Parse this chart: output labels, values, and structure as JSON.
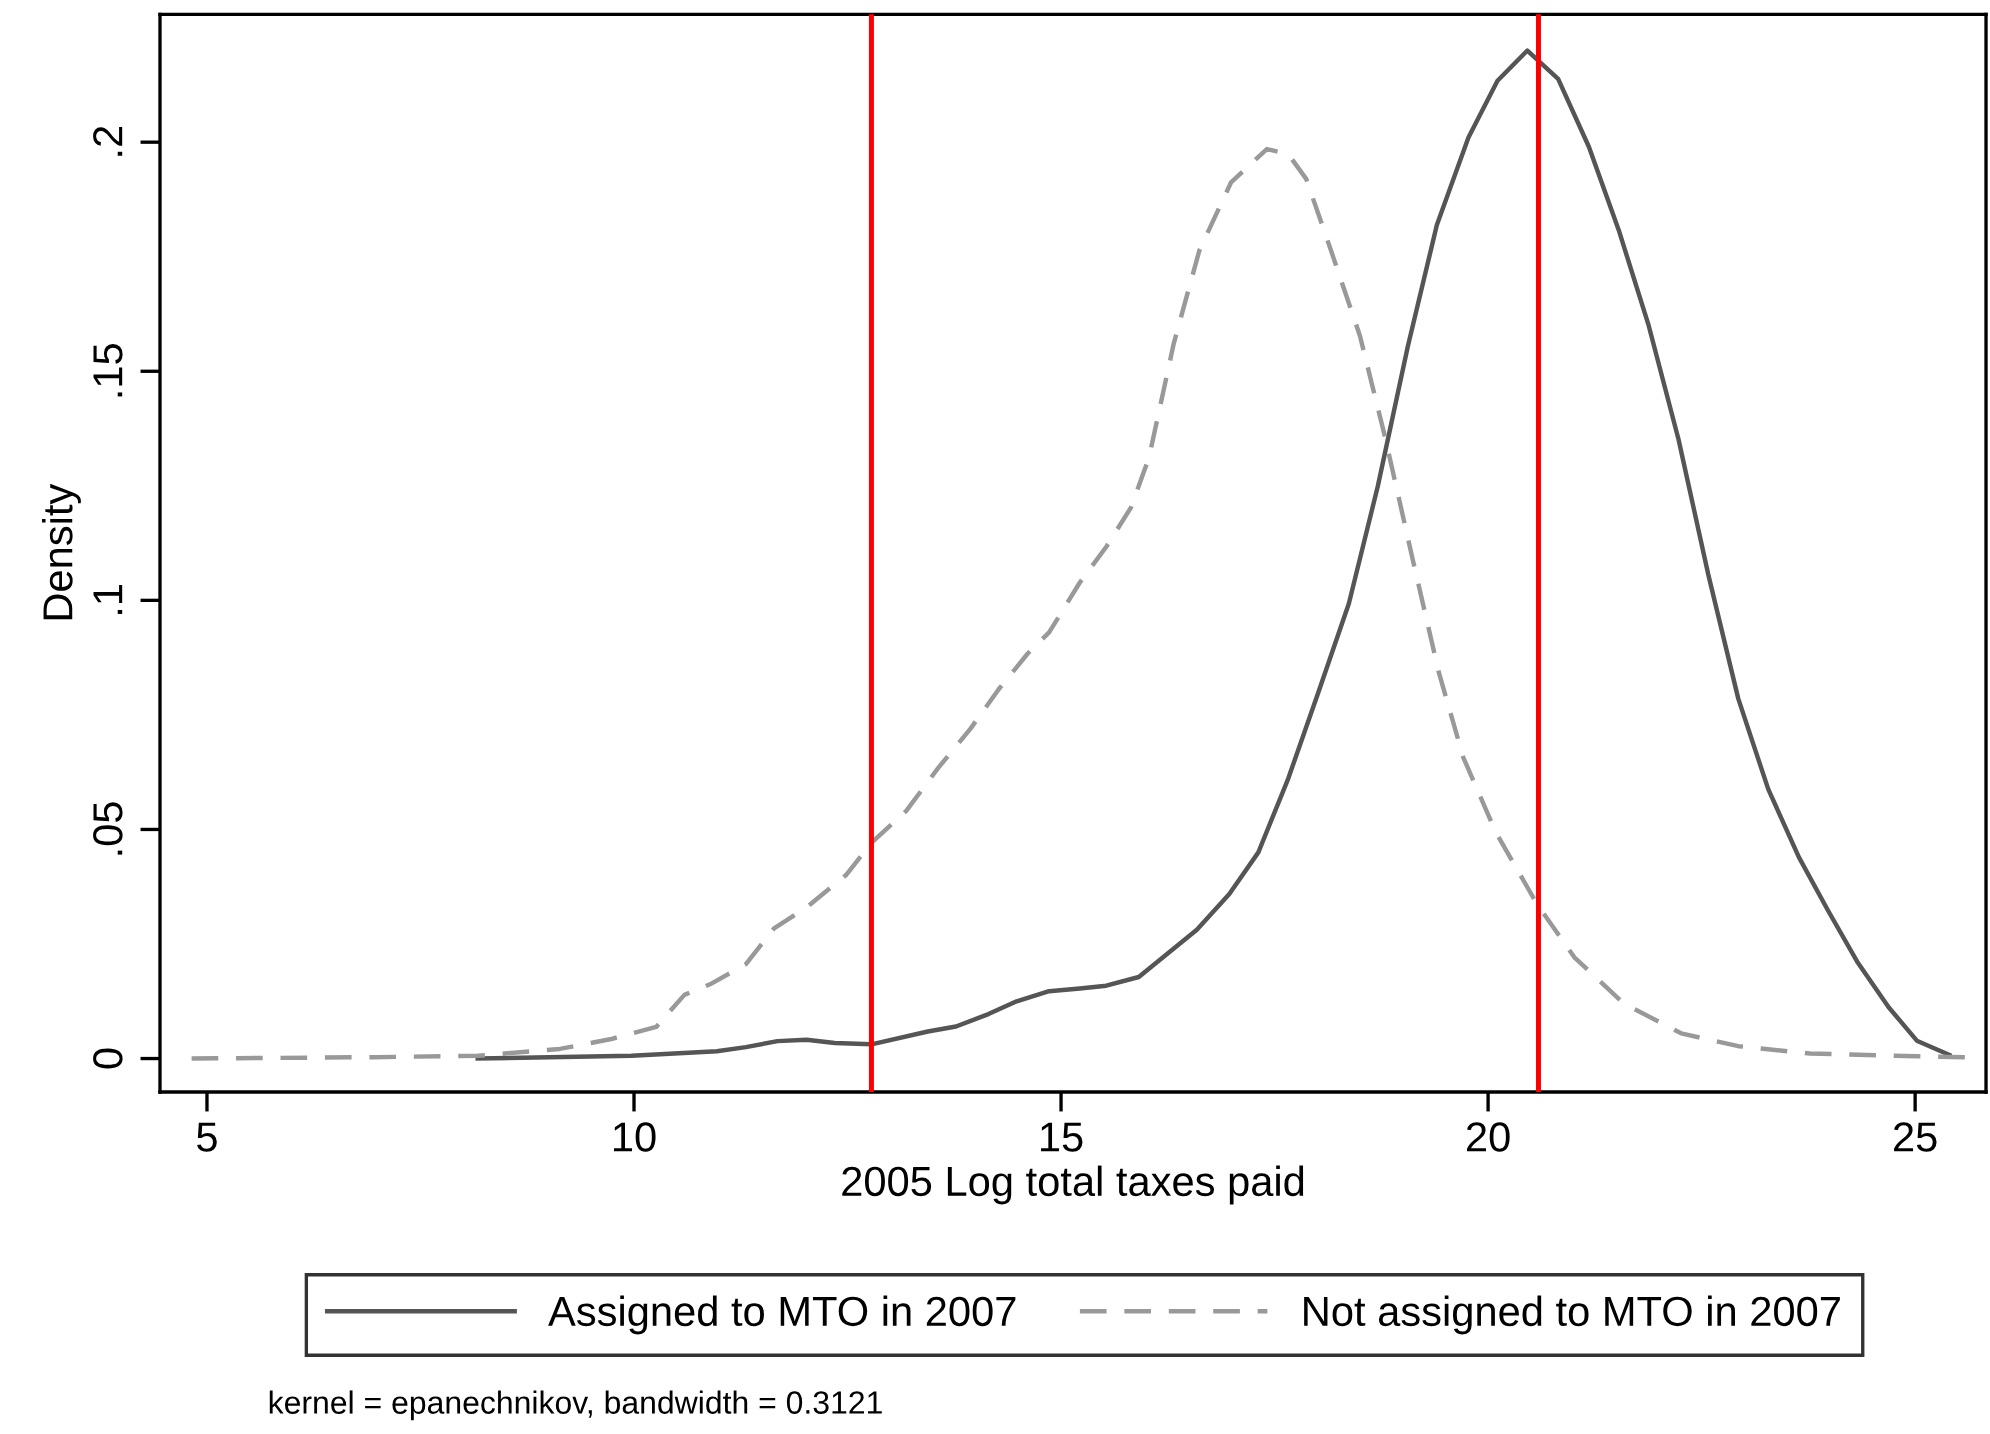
{
  "chart_data": {
    "type": "line",
    "xlabel": "2005 Log total taxes paid",
    "ylabel": "Density",
    "xlim": [
      4.45,
      25.83
    ],
    "xticks": [
      5,
      10,
      15,
      20,
      25
    ],
    "ylim": [
      -0.0073,
      0.2279
    ],
    "yticks": [
      0,
      {
        "value": 0.05,
        "label": ".05"
      },
      {
        "value": 0.1,
        "label": ".1"
      },
      {
        "value": 0.15,
        "label": ".15"
      },
      {
        "value": 0.2,
        "label": ".2"
      }
    ],
    "grid": false,
    "legend": "bottom",
    "marker": "none",
    "series": [
      {
        "name": "Assigned to MTO in 2007",
        "color": "#555555",
        "line_style": "solid",
        "x": [
          8.17,
          9.97,
          10.97,
          11.31,
          11.68,
          12.02,
          12.35,
          12.78,
          13.44,
          13.77,
          14.15,
          14.48,
          14.86,
          15.22,
          15.53,
          15.91,
          16.59,
          16.97,
          17.31,
          17.66,
          18.01,
          18.37,
          18.71,
          19.06,
          19.4,
          19.77,
          20.11,
          20.46,
          20.82,
          21.18,
          21.53,
          21.88,
          22.23,
          22.58,
          22.93,
          23.28,
          23.64,
          23.98,
          24.33,
          24.69,
          25.02,
          25.4
        ],
        "values": [
          0,
          0.0006,
          0.0016,
          0.0025,
          0.0038,
          0.0041,
          0.0034,
          0.0031,
          0.0059,
          0.007,
          0.0097,
          0.0125,
          0.0147,
          0.0153,
          0.0159,
          0.0178,
          0.0281,
          0.0359,
          0.045,
          0.0611,
          0.0798,
          0.0993,
          0.125,
          0.1554,
          0.1819,
          0.201,
          0.2134,
          0.22,
          0.2138,
          0.199,
          0.1808,
          0.16,
          0.1351,
          0.1055,
          0.0785,
          0.0588,
          0.0439,
          0.0323,
          0.0209,
          0.0112,
          0.0039,
          0.0008
        ]
      },
      {
        "name": "Not assigned to MTO in 2007",
        "color": "#999999",
        "line_style": "dashed",
        "x": [
          4.82,
          6.96,
          8.17,
          9.13,
          9.72,
          10.26,
          10.59,
          10.89,
          11.31,
          11.64,
          12.02,
          12.48,
          12.78,
          13.19,
          13.56,
          13.94,
          14.27,
          14.61,
          14.86,
          15.22,
          15.53,
          15.82,
          16.03,
          16.32,
          16.62,
          16.99,
          17.41,
          17.66,
          17.87,
          18.16,
          18.5,
          18.79,
          19.13,
          19.42,
          19.71,
          20.09,
          20.57,
          21.01,
          21.59,
          22.26,
          22.93,
          23.77,
          25.02,
          25.78
        ],
        "values": [
          0,
          0.0003,
          0.0006,
          0.0021,
          0.0042,
          0.0069,
          0.0139,
          0.0162,
          0.0206,
          0.0284,
          0.033,
          0.04,
          0.0471,
          0.0541,
          0.0634,
          0.072,
          0.0806,
          0.0884,
          0.093,
          0.1039,
          0.1117,
          0.1203,
          0.1312,
          0.1561,
          0.1764,
          0.1912,
          0.1985,
          0.1974,
          0.192,
          0.1764,
          0.1577,
          0.1359,
          0.1079,
          0.0845,
          0.0657,
          0.0494,
          0.0338,
          0.0221,
          0.012,
          0.0055,
          0.0027,
          0.0011,
          0.0005,
          0.0002
        ]
      }
    ],
    "ref_lines": [
      {
        "axis": "x",
        "value": 12.78,
        "color": "#ff0000"
      },
      {
        "axis": "x",
        "value": 20.59,
        "color": "#ff0000"
      }
    ],
    "annotations": [
      "kernel = epanechnikov, bandwidth = 0.3121"
    ]
  }
}
